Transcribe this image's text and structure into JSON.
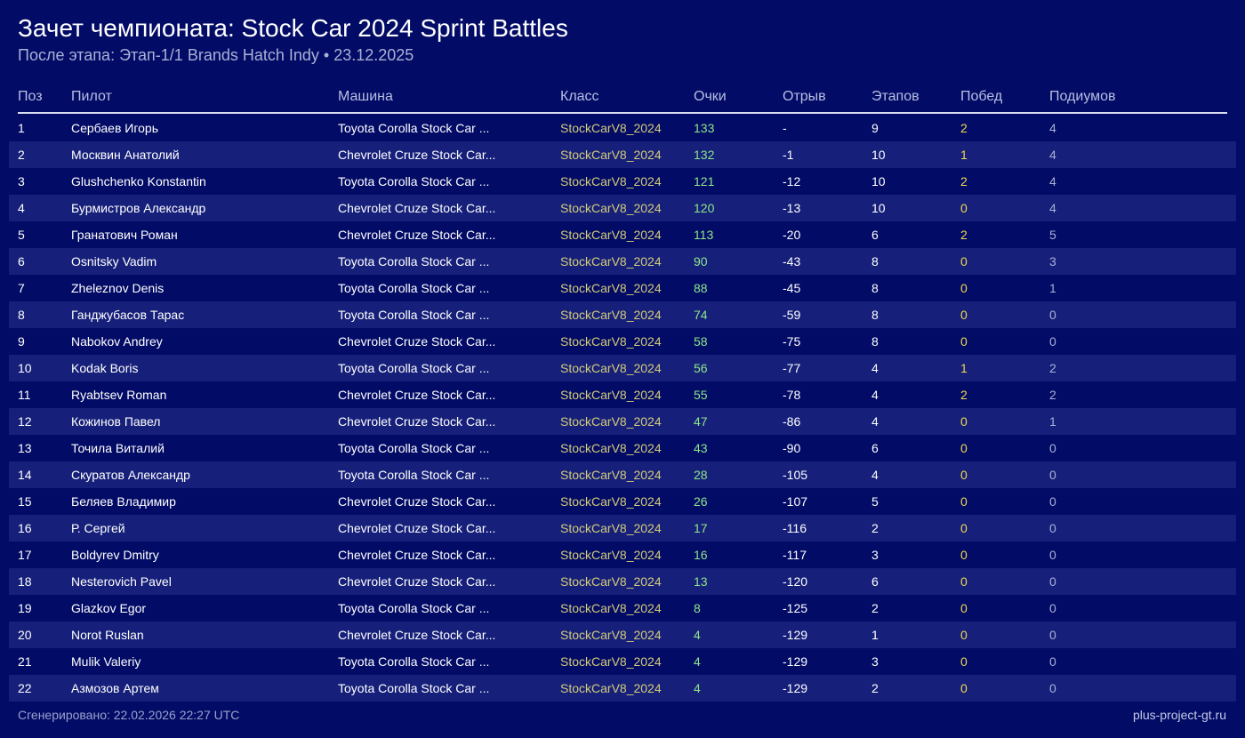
{
  "header": {
    "title": "Зачет чемпионата: Stock Car 2024 Sprint Battles",
    "subtitle": "После этапа: Этап-1/1 Brands Hatch Indy • 23.12.2025"
  },
  "table": {
    "columns": [
      "Поз",
      "Пилот",
      "Машина",
      "Класс",
      "Очки",
      "Отрыв",
      "Этапов",
      "Побед",
      "Подиумов"
    ],
    "rows": [
      [
        "1",
        "Сербаев Игорь",
        "Toyota Corolla Stock Car ...",
        "StockCarV8_2024",
        "133",
        "-",
        "9",
        "2",
        "4"
      ],
      [
        "2",
        "Москвин Анатолий",
        "Chevrolet Cruze Stock Car...",
        "StockCarV8_2024",
        "132",
        "-1",
        "10",
        "1",
        "4"
      ],
      [
        "3",
        "Glushchenko Konstantin",
        "Toyota Corolla Stock Car ...",
        "StockCarV8_2024",
        "121",
        "-12",
        "10",
        "2",
        "4"
      ],
      [
        "4",
        "Бурмистров Александр",
        "Chevrolet Cruze Stock Car...",
        "StockCarV8_2024",
        "120",
        "-13",
        "10",
        "0",
        "4"
      ],
      [
        "5",
        "Гранатович Роман",
        "Chevrolet Cruze Stock Car...",
        "StockCarV8_2024",
        "113",
        "-20",
        "6",
        "2",
        "5"
      ],
      [
        "6",
        "Osnitsky Vadim",
        "Toyota Corolla Stock Car ...",
        "StockCarV8_2024",
        "90",
        "-43",
        "8",
        "0",
        "3"
      ],
      [
        "7",
        "Zheleznov Denis",
        "Toyota Corolla Stock Car ...",
        "StockCarV8_2024",
        "88",
        "-45",
        "8",
        "0",
        "1"
      ],
      [
        "8",
        "Ганджубасов Тарас",
        "Toyota Corolla Stock Car ...",
        "StockCarV8_2024",
        "74",
        "-59",
        "8",
        "0",
        "0"
      ],
      [
        "9",
        "Nabokov Andrey",
        "Chevrolet Cruze Stock Car...",
        "StockCarV8_2024",
        "58",
        "-75",
        "8",
        "0",
        "0"
      ],
      [
        "10",
        "Kodak Boris",
        "Toyota Corolla Stock Car ...",
        "StockCarV8_2024",
        "56",
        "-77",
        "4",
        "1",
        "2"
      ],
      [
        "11",
        "Ryabtsev Roman",
        "Chevrolet Cruze Stock Car...",
        "StockCarV8_2024",
        "55",
        "-78",
        "4",
        "2",
        "2"
      ],
      [
        "12",
        "Кожинов Павел",
        "Chevrolet Cruze Stock Car...",
        "StockCarV8_2024",
        "47",
        "-86",
        "4",
        "0",
        "1"
      ],
      [
        "13",
        "Точила Виталий",
        "Toyota Corolla Stock Car ...",
        "StockCarV8_2024",
        "43",
        "-90",
        "6",
        "0",
        "0"
      ],
      [
        "14",
        "Скуратов Александр",
        "Toyota Corolla Stock Car ...",
        "StockCarV8_2024",
        "28",
        "-105",
        "4",
        "0",
        "0"
      ],
      [
        "15",
        "Беляев Владимир",
        "Chevrolet Cruze Stock Car...",
        "StockCarV8_2024",
        "26",
        "-107",
        "5",
        "0",
        "0"
      ],
      [
        "16",
        "Р. Сергей",
        "Chevrolet Cruze Stock Car...",
        "StockCarV8_2024",
        "17",
        "-116",
        "2",
        "0",
        "0"
      ],
      [
        "17",
        "Boldyrev Dmitry",
        "Chevrolet Cruze Stock Car...",
        "StockCarV8_2024",
        "16",
        "-117",
        "3",
        "0",
        "0"
      ],
      [
        "18",
        "Nesterovich Pavel",
        "Chevrolet Cruze Stock Car...",
        "StockCarV8_2024",
        "13",
        "-120",
        "6",
        "0",
        "0"
      ],
      [
        "19",
        "Glazkov Egor",
        "Toyota Corolla Stock Car ...",
        "StockCarV8_2024",
        "8",
        "-125",
        "2",
        "0",
        "0"
      ],
      [
        "20",
        "Norot Ruslan",
        "Chevrolet Cruze Stock Car...",
        "StockCarV8_2024",
        "4",
        "-129",
        "1",
        "0",
        "0"
      ],
      [
        "21",
        "Mulik Valeriy",
        "Toyota Corolla Stock Car ...",
        "StockCarV8_2024",
        "4",
        "-129",
        "3",
        "0",
        "0"
      ],
      [
        "22",
        "Азмозов Артем",
        "Toyota Corolla Stock Car ...",
        "StockCarV8_2024",
        "4",
        "-129",
        "2",
        "0",
        "0"
      ]
    ]
  },
  "footer": {
    "generated": "Сгенерировано: 22.02.2026 22:27 UTC",
    "site": "plus-project-gt.ru"
  },
  "colors": {
    "background": "#020b66",
    "row_alt": "#16207a",
    "class_text": "#d4cc7a",
    "points_text": "#8ee68a",
    "wins_text": "#f2d94e",
    "podiums_text": "#aab1d6"
  }
}
